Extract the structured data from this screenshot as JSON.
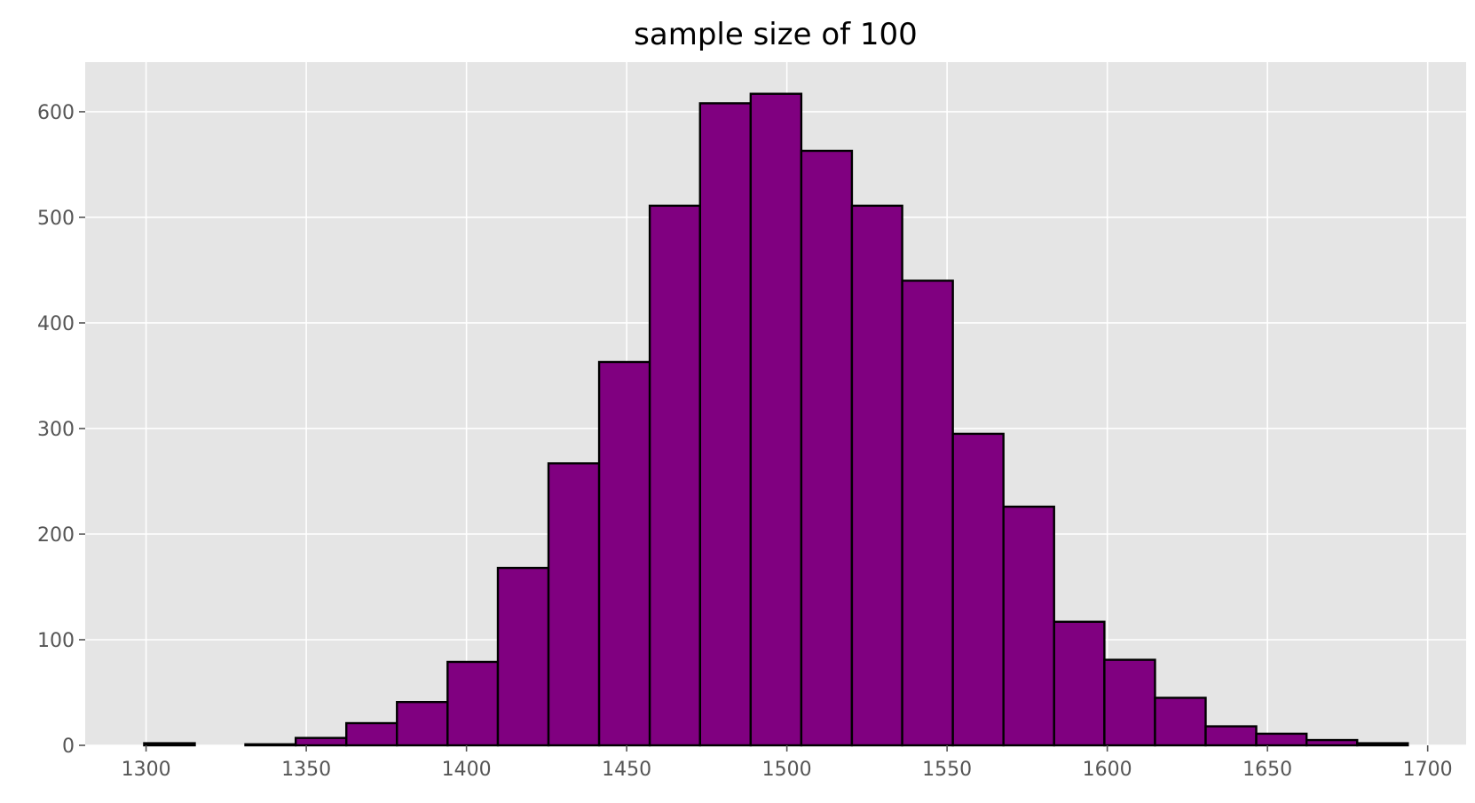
{
  "chart_data": {
    "type": "bar",
    "title": "sample size of 100",
    "xlabel": "",
    "ylabel": "",
    "xlim": [
      1281,
      1712
    ],
    "ylim": [
      0,
      647
    ],
    "x_ticks": [
      1300,
      1350,
      1400,
      1450,
      1500,
      1550,
      1600,
      1650,
      1700
    ],
    "y_ticks": [
      0,
      100,
      200,
      300,
      400,
      500,
      600
    ],
    "grid": true,
    "bins": [
      {
        "x0": 1299.4,
        "x1": 1315.2,
        "count": 2
      },
      {
        "x0": 1315.2,
        "x1": 1331.0,
        "count": 0
      },
      {
        "x0": 1331.0,
        "x1": 1346.7,
        "count": 1
      },
      {
        "x0": 1346.7,
        "x1": 1362.5,
        "count": 7
      },
      {
        "x0": 1362.5,
        "x1": 1378.3,
        "count": 21
      },
      {
        "x0": 1378.3,
        "x1": 1394.1,
        "count": 41
      },
      {
        "x0": 1394.1,
        "x1": 1409.8,
        "count": 79
      },
      {
        "x0": 1409.8,
        "x1": 1425.6,
        "count": 168
      },
      {
        "x0": 1425.6,
        "x1": 1441.4,
        "count": 267
      },
      {
        "x0": 1441.4,
        "x1": 1457.2,
        "count": 363
      },
      {
        "x0": 1457.2,
        "x1": 1472.9,
        "count": 511
      },
      {
        "x0": 1472.9,
        "x1": 1488.7,
        "count": 608
      },
      {
        "x0": 1488.7,
        "x1": 1504.5,
        "count": 617
      },
      {
        "x0": 1504.5,
        "x1": 1520.3,
        "count": 563
      },
      {
        "x0": 1520.3,
        "x1": 1536.0,
        "count": 511
      },
      {
        "x0": 1536.0,
        "x1": 1551.8,
        "count": 440
      },
      {
        "x0": 1551.8,
        "x1": 1567.6,
        "count": 295
      },
      {
        "x0": 1567.6,
        "x1": 1583.4,
        "count": 226
      },
      {
        "x0": 1583.4,
        "x1": 1599.1,
        "count": 117
      },
      {
        "x0": 1599.1,
        "x1": 1614.9,
        "count": 81
      },
      {
        "x0": 1614.9,
        "x1": 1630.7,
        "count": 45
      },
      {
        "x0": 1630.7,
        "x1": 1646.5,
        "count": 18
      },
      {
        "x0": 1646.5,
        "x1": 1662.2,
        "count": 11
      },
      {
        "x0": 1662.2,
        "x1": 1678.0,
        "count": 5
      },
      {
        "x0": 1678.0,
        "x1": 1693.8,
        "count": 2
      }
    ],
    "colors": {
      "bar_fill": "#800080",
      "bar_edge": "#000000",
      "plot_background": "#e5e5e5",
      "grid": "#ffffff",
      "tick_text": "#555555"
    }
  }
}
